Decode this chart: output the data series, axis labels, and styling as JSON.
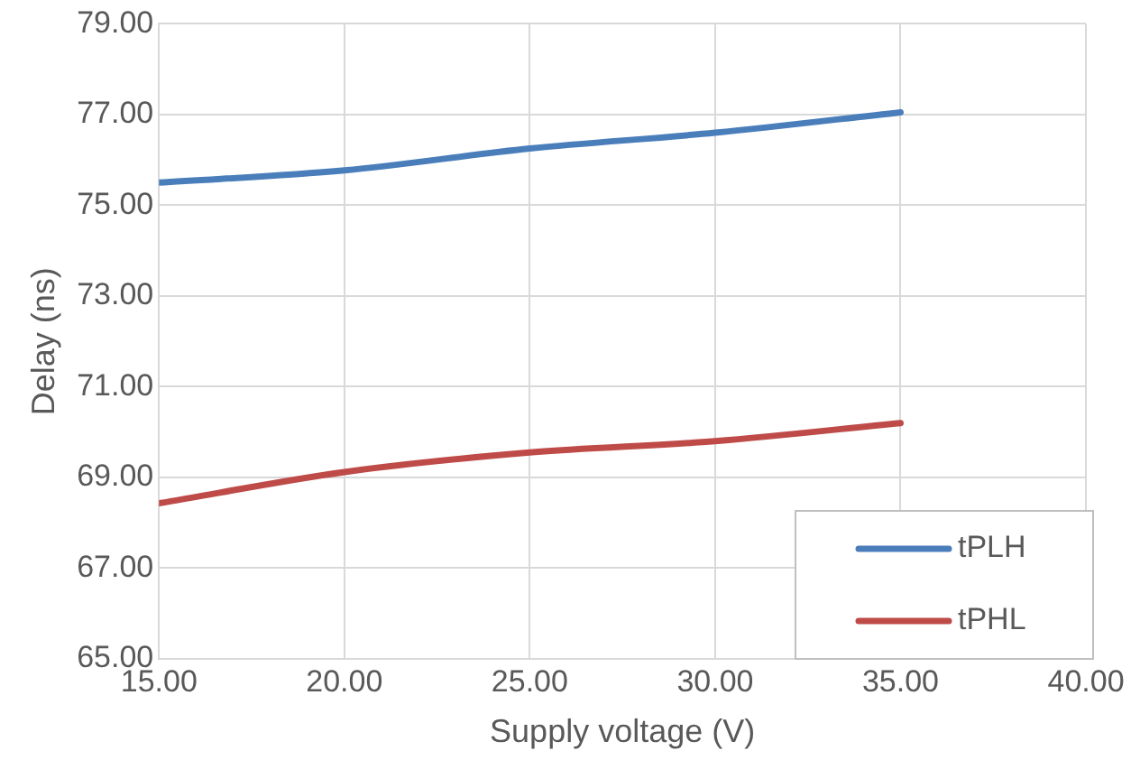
{
  "chart_data": {
    "type": "line",
    "xlabel": "Supply voltage (V)",
    "ylabel": "Delay (ns)",
    "x": [
      15,
      20,
      25,
      30,
      35
    ],
    "series": [
      {
        "name": "tPLH",
        "color": "#4a7ebb",
        "values": [
          75.5,
          75.77,
          76.25,
          76.6,
          77.05
        ]
      },
      {
        "name": "tPHL",
        "color": "#be4b48",
        "values": [
          68.43,
          69.12,
          69.55,
          69.8,
          70.2
        ]
      }
    ],
    "xlim": [
      15,
      40
    ],
    "xticks": [
      {
        "value": 15,
        "label": "15.00"
      },
      {
        "value": 20,
        "label": "20.00"
      },
      {
        "value": 25,
        "label": "25.00"
      },
      {
        "value": 30,
        "label": "30.00"
      },
      {
        "value": 35,
        "label": "35.00"
      },
      {
        "value": 40,
        "label": "40.00"
      }
    ],
    "ylim": [
      65,
      79
    ],
    "yticks": [
      {
        "value": 65,
        "label": "65.00"
      },
      {
        "value": 67,
        "label": "67.00"
      },
      {
        "value": 69,
        "label": "69.00"
      },
      {
        "value": 71,
        "label": "71.00"
      },
      {
        "value": 73,
        "label": "73.00"
      },
      {
        "value": 75,
        "label": "75.00"
      },
      {
        "value": 77,
        "label": "77.00"
      },
      {
        "value": 79,
        "label": "79.00"
      }
    ],
    "grid": true,
    "legend": "bottom right",
    "marker": "none",
    "line_style": "solid"
  }
}
